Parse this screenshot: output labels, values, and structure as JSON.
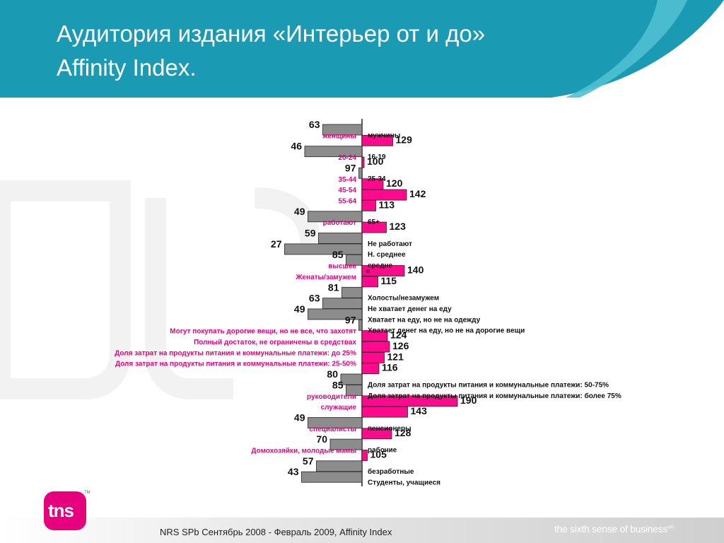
{
  "slide": {
    "title_line1": "Аудитория издания «Интерьер от и до»",
    "title_line2": "Affinity Index.",
    "footer": "NRS SPb Сентябрь 2008 - Февраль 2009, Affinity Index",
    "tagline": "the sixth sense of business",
    "tagline_mark": "sm",
    "logo_text": "tns",
    "logo_tm": "TM"
  },
  "colors": {
    "header": "#1a9bb3",
    "header_light": "#5ec3d4",
    "above": "#ff0a8c",
    "below": "#8c8c8c",
    "label_pink": "#e6007e",
    "logo": "#e6007e"
  },
  "chart_data": {
    "type": "bar",
    "orientation": "horizontal",
    "baseline": 100,
    "categories": [
      "мужчины",
      "женщины",
      "16-19",
      "20-24",
      "25-34",
      "35-44",
      "45-54",
      "55-64",
      "65+",
      "работают",
      "Не работают",
      "Н. среднее",
      "средне",
      "высшее",
      "Женаты/замужем",
      "Холосты/незамужем",
      "Не хватает денег на еду",
      "Хватает на еду, но не на одежду",
      "Хватает денег на еду, но не на дорогие вещи",
      "Могут покупать дорогие вещи, но не все, что захотят",
      "Полный достаток, не ограничены в средствах",
      "Доля затрат на продукты питания и коммунальные платежи: до 25%",
      "Доля затрат на продукты питания и коммунальные платежи: 25-50%",
      "Доля затрат на продукты питания и коммунальные платежи: 50-75%",
      "Доля затрат на продукты питания и коммунальные платежи: более 75%",
      "руководители",
      "служащие",
      "пенсионеры",
      "специалисты",
      "рабочие",
      "Домохозяйки, молодые мамы",
      "безработные",
      "Студенты, учащиеся"
    ],
    "values": [
      63,
      129,
      46,
      100,
      97,
      120,
      142,
      113,
      49,
      123,
      59,
      27,
      85,
      140,
      115,
      81,
      63,
      49,
      97,
      124,
      126,
      121,
      116,
      80,
      85,
      190,
      143,
      49,
      128,
      70,
      105,
      57,
      43
    ],
    "extra_label": "е"
  }
}
